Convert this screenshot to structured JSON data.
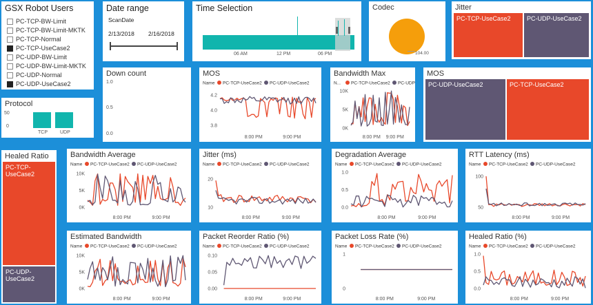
{
  "colors": {
    "red": "#e8482a",
    "purple": "#5f5773",
    "teal": "#11b5ad",
    "orange": "#f59e0b",
    "bg": "#1c8fd9"
  },
  "robot_users": {
    "title": "GSX Robot Users",
    "items": [
      {
        "label": "PC-TCP-BW-Limit",
        "checked": false
      },
      {
        "label": "PC-TCP-BW-Limit-MKTK",
        "checked": false
      },
      {
        "label": "PC-TCP-Normal",
        "checked": false
      },
      {
        "label": "PC-TCP-UseCase2",
        "checked": true
      },
      {
        "label": "PC-UDP-BW-Limit",
        "checked": false
      },
      {
        "label": "PC-UDP-BW-Limit-MKTK",
        "checked": false
      },
      {
        "label": "PC-UDP-Normal",
        "checked": false
      },
      {
        "label": "PC-UDP-UseCase2",
        "checked": true
      }
    ]
  },
  "date_range": {
    "title": "Date range",
    "field": "ScanDate",
    "start": "2/13/2018",
    "end": "2/16/2018"
  },
  "time_selection": {
    "title": "Time Selection",
    "ticks": [
      "06 AM",
      "12 PM",
      "06 PM"
    ]
  },
  "codec": {
    "title": "Codec",
    "value_label": "104.00"
  },
  "jitter_map": {
    "title": "Jitter",
    "blocks": [
      "PC-TCP-UseCase2",
      "PC-UDP-UseCase2"
    ]
  },
  "protocol": {
    "title": "Protocol",
    "yticks": [
      "50",
      "0"
    ],
    "categories": [
      "TCP",
      "UDP"
    ]
  },
  "down_count": {
    "title": "Down count",
    "yticks": [
      "1.0",
      "0.5",
      "0.0"
    ]
  },
  "mos_map": {
    "title": "MOS",
    "blocks": [
      "PC-UDP-UseCase2",
      "PC-TCP-UseCase2"
    ]
  },
  "healed_ratio_map": {
    "title": "Healed Ratio",
    "blocks": [
      "PC-TCP-UseCase2",
      "PC-UDP-UseCase2"
    ]
  },
  "legend": {
    "name": "Name",
    "n_short": "N...",
    "series": [
      "PC-TCP-UseCase2",
      "PC-UDP-UseCase2"
    ]
  },
  "charts": {
    "mos": {
      "title": "MOS",
      "yticks": [
        "4.2",
        "4.0",
        "3.8"
      ],
      "xticks": [
        "8:00 PM",
        "9:00 PM"
      ]
    },
    "bwmax": {
      "title": "Bandwidth Max",
      "yticks": [
        "10K",
        "5K",
        "0K"
      ],
      "xticks": [
        "8:00 PM",
        "9:00 PM"
      ]
    },
    "bwavg": {
      "title": "Bandwidth Average",
      "yticks": [
        "10K",
        "5K",
        "0K"
      ],
      "xticks": [
        "8:00 PM",
        "9:00 PM"
      ]
    },
    "jitter": {
      "title": "Jitter (ms)",
      "yticks": [
        "20",
        "10"
      ],
      "xticks": [
        "8:00 PM",
        "9:00 PM"
      ]
    },
    "degr": {
      "title": "Degradation Average",
      "yticks": [
        "1.0",
        "0.5",
        "0.0"
      ],
      "xticks": [
        "8:00 PM",
        "9:00 PM"
      ]
    },
    "rtt": {
      "title": "RTT Latency (ms)",
      "yticks": [
        "100",
        "50"
      ],
      "xticks": [
        "8:00 PM",
        "9:00 PM"
      ]
    },
    "estbw": {
      "title": "Estimated Bandwidth",
      "yticks": [
        "10K",
        "5K",
        "0K"
      ],
      "xticks": [
        "8:00 PM",
        "9:00 PM"
      ]
    },
    "reorder": {
      "title": "Packet Reorder Ratio (%)",
      "yticks": [
        "0.10",
        "0.05",
        "0.00"
      ],
      "xticks": [
        "8:00 PM",
        "9:00 PM"
      ]
    },
    "loss": {
      "title": "Packet Loss Rate (%)",
      "yticks": [
        "1",
        "0"
      ],
      "xticks": [
        "8:00 PM",
        "9:00 PM"
      ]
    },
    "healed": {
      "title": "Healed Ratio (%)",
      "yticks": [
        "1.0",
        "0.5",
        "0.0"
      ],
      "xticks": [
        "8:00 PM",
        "9:00 PM"
      ]
    }
  }
}
